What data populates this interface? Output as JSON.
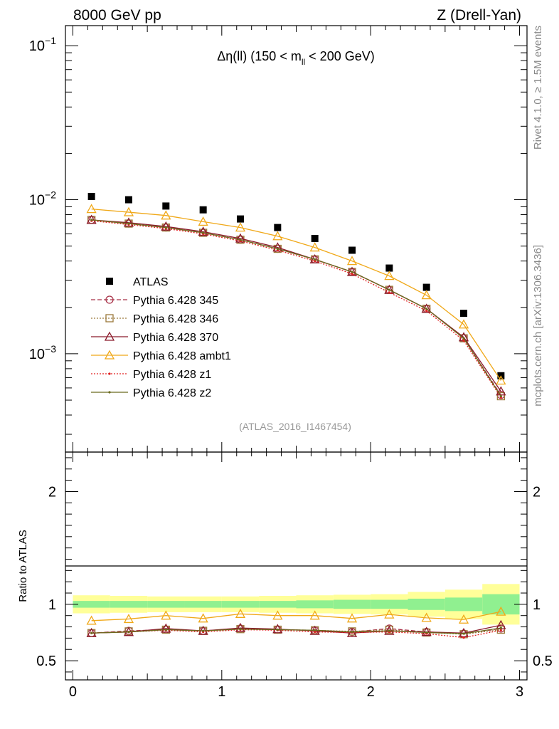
{
  "header": {
    "left": "8000 GeV pp",
    "right": "Z (Drell-Yan)"
  },
  "side": {
    "rivet": "Rivet 4.1.0, ≥ 1.5M events",
    "mcplots": "mcplots.cern.ch [arXiv:1306.3436]"
  },
  "chart_data": [
    {
      "type": "scatter",
      "title": "Δη(ll) (150 < m_ll < 200 GeV)",
      "title_parts": {
        "pre": "Δη(ll) (150 < m",
        "sub": "ll",
        "post": " < 200 GeV)"
      },
      "analysis": "(ATLAS_2016_I1467454)",
      "xlabel": "",
      "ylabel": "",
      "yscale": "log",
      "ylim": [
        0.00023,
        0.135
      ],
      "xlim": [
        -0.05,
        3.05
      ],
      "ytick_labels": [
        {
          "value": 0.1,
          "base": "10",
          "exp": "−1"
        },
        {
          "value": 0.01,
          "base": "10",
          "exp": "−2"
        },
        {
          "value": 0.001,
          "base": "10",
          "exp": "−3"
        }
      ],
      "x": [
        0.125,
        0.375,
        0.625,
        0.875,
        1.125,
        1.375,
        1.625,
        1.875,
        2.125,
        2.375,
        2.625,
        2.875
      ],
      "series": [
        {
          "name": "ATLAS",
          "color": "#000000",
          "marker": "square",
          "values": [
            0.0105,
            0.01,
            0.0091,
            0.0086,
            0.0075,
            0.0066,
            0.0056,
            0.0047,
            0.0036,
            0.0027,
            0.00183,
            0.00072
          ]
        },
        {
          "name": "Pythia 6.428 345",
          "color": "#a83248",
          "marker": "circle",
          "dash": "6,3",
          "values": [
            0.0074,
            0.007,
            0.0066,
            0.0061,
            0.0055,
            0.0048,
            0.0041,
            0.0034,
            0.0026,
            0.00196,
            0.00126,
            0.00054
          ]
        },
        {
          "name": "Pythia 6.428 346",
          "color": "#9c7a3c",
          "marker": "square-open",
          "dash": "2,2",
          "values": [
            0.0074,
            0.007,
            0.0066,
            0.0061,
            0.0055,
            0.0048,
            0.0041,
            0.0034,
            0.0026,
            0.00196,
            0.00126,
            0.00053
          ]
        },
        {
          "name": "Pythia 6.428 370",
          "color": "#8b1a2a",
          "marker": "triangle",
          "dash": "",
          "values": [
            0.0074,
            0.0071,
            0.0067,
            0.0062,
            0.0056,
            0.0049,
            0.0041,
            0.0034,
            0.0026,
            0.00196,
            0.00128,
            0.00057
          ]
        },
        {
          "name": "Pythia 6.428 ambt1",
          "color": "#f0a818",
          "marker": "triangle",
          "dash": "",
          "values": [
            0.0087,
            0.0083,
            0.0079,
            0.0072,
            0.0066,
            0.0058,
            0.0049,
            0.004,
            0.0032,
            0.0024,
            0.00155,
            0.00067
          ]
        },
        {
          "name": "Pythia 6.428 z1",
          "color": "#e02020",
          "marker": "dot",
          "dash": "2,2",
          "values": [
            0.0073,
            0.0069,
            0.0065,
            0.006,
            0.0054,
            0.0047,
            0.004,
            0.0033,
            0.0025,
            0.0019,
            0.00122,
            0.00052
          ]
        },
        {
          "name": "Pythia 6.428 z2",
          "color": "#6b6b1e",
          "marker": "dot",
          "dash": "",
          "values": [
            0.0074,
            0.007,
            0.0066,
            0.0061,
            0.0055,
            0.0048,
            0.0041,
            0.0034,
            0.0026,
            0.00196,
            0.00126,
            0.00053
          ]
        }
      ]
    },
    {
      "type": "scatter",
      "title": "",
      "ylabel": "Ratio to ATLAS",
      "xlabel": "",
      "ylim": [
        0.33,
        2.35
      ],
      "xlim": [
        -0.05,
        3.05
      ],
      "ytick_labels": [
        {
          "value": 2,
          "label": "2"
        },
        {
          "value": 1,
          "label": "1"
        },
        {
          "value": 0.5,
          "label": "0.5"
        }
      ],
      "xtick_labels": [
        {
          "value": 0,
          "label": "0"
        },
        {
          "value": 1,
          "label": "1"
        },
        {
          "value": 2,
          "label": "2"
        },
        {
          "value": 3,
          "label": "3"
        }
      ],
      "bands": {
        "edges": [
          0,
          0.25,
          0.5,
          0.75,
          1.0,
          1.25,
          1.5,
          1.75,
          2.0,
          2.25,
          2.5,
          2.75,
          3.0
        ],
        "stat_color": "#90f090",
        "total_color": "#ffff99",
        "stat": [
          0.03,
          0.03,
          0.03,
          0.03,
          0.03,
          0.03,
          0.035,
          0.04,
          0.04,
          0.05,
          0.06,
          0.09
        ],
        "total": [
          0.08,
          0.075,
          0.07,
          0.07,
          0.07,
          0.075,
          0.08,
          0.085,
          0.09,
          0.11,
          0.13,
          0.18
        ]
      },
      "series": [
        {
          "name": "Pythia 6.428 345",
          "color": "#a83248",
          "marker": "circle",
          "dash": "6,3",
          "values": [
            0.745,
            0.765,
            0.775,
            0.765,
            0.785,
            0.775,
            0.77,
            0.755,
            0.785,
            0.755,
            0.74,
            0.785
          ]
        },
        {
          "name": "Pythia 6.428 346",
          "color": "#9c7a3c",
          "marker": "square-open",
          "dash": "2,2",
          "values": [
            0.745,
            0.76,
            0.775,
            0.765,
            0.78,
            0.775,
            0.77,
            0.76,
            0.775,
            0.75,
            0.735,
            0.775
          ]
        },
        {
          "name": "Pythia 6.428 370",
          "color": "#8b1a2a",
          "marker": "triangle",
          "dash": "",
          "values": [
            0.745,
            0.755,
            0.785,
            0.765,
            0.79,
            0.78,
            0.765,
            0.745,
            0.765,
            0.755,
            0.745,
            0.815
          ]
        },
        {
          "name": "Pythia 6.428 ambt1",
          "color": "#f0a818",
          "marker": "triangle",
          "dash": "",
          "values": [
            0.855,
            0.87,
            0.9,
            0.875,
            0.915,
            0.9,
            0.9,
            0.875,
            0.91,
            0.88,
            0.865,
            0.935
          ]
        },
        {
          "name": "Pythia 6.428 z1",
          "color": "#e02020",
          "marker": "dot",
          "dash": "2,2",
          "values": [
            0.745,
            0.755,
            0.77,
            0.755,
            0.775,
            0.77,
            0.755,
            0.75,
            0.755,
            0.74,
            0.705,
            0.77
          ]
        },
        {
          "name": "Pythia 6.428 z2",
          "color": "#6b6b1e",
          "marker": "dot",
          "dash": "",
          "values": [
            0.745,
            0.755,
            0.775,
            0.765,
            0.78,
            0.775,
            0.77,
            0.755,
            0.765,
            0.75,
            0.74,
            0.79
          ]
        }
      ]
    }
  ]
}
